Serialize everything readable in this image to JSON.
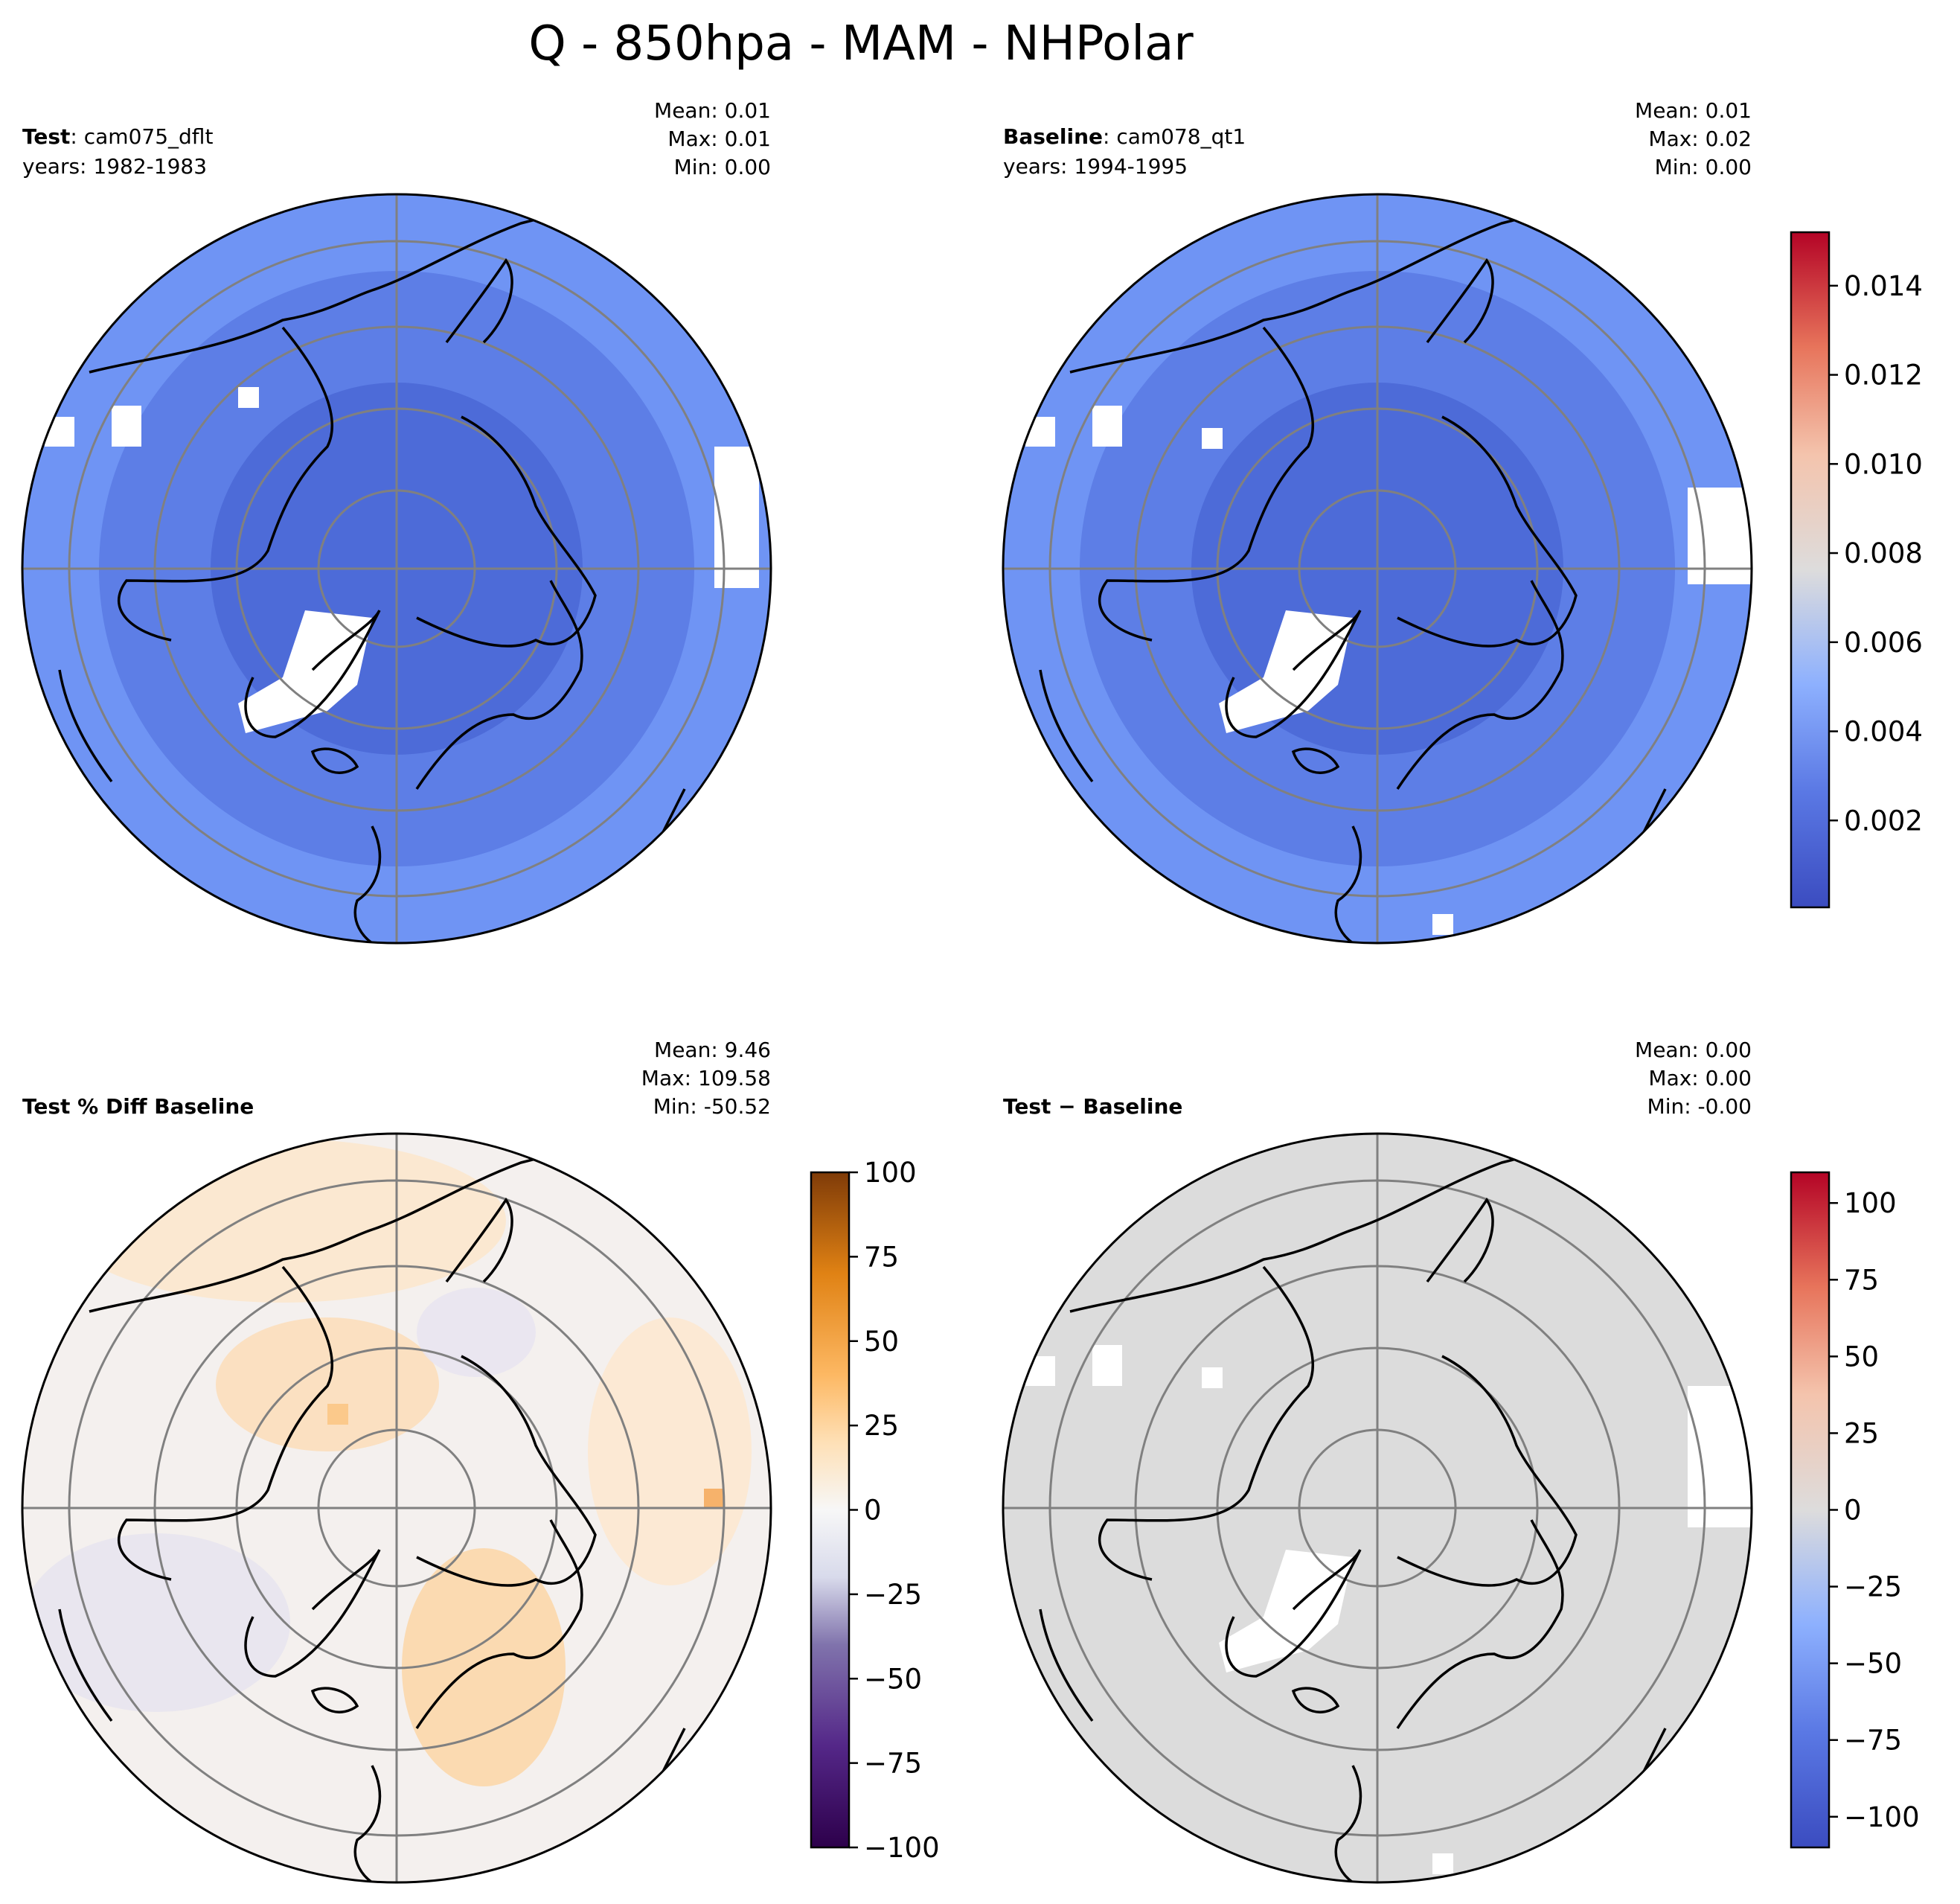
{
  "title": "Q - 850hpa - MAM - NHPolar",
  "panels": [
    {
      "id": "test",
      "label_bold": "Test",
      "label_rest": ": cam075_dflt",
      "years": "years: 1982-1983",
      "stats": [
        "Mean:  0.01",
        "Max:  0.01",
        "Min:  0.00"
      ],
      "fill": "#4a6fd8"
    },
    {
      "id": "baseline",
      "label_bold": "Baseline",
      "label_rest": ": cam078_qt1",
      "years": "years: 1994-1995",
      "stats": [
        "Mean:  0.01",
        "Max:  0.02",
        "Min:  0.00"
      ],
      "fill": "#4a6fd8"
    },
    {
      "id": "pctdiff",
      "label_bold": "Test % Diff Baseline",
      "label_rest": "",
      "years": "",
      "stats": [
        "Mean:  9.46",
        "Max: 109.58",
        "Min: -50.52"
      ],
      "fill": "#f3efee"
    },
    {
      "id": "diff",
      "label_bold": "Test − Baseline",
      "label_rest": "",
      "years": "",
      "stats": [
        "Mean:  0.00",
        "Max:  0.00",
        "Min: -0.00"
      ],
      "fill": "#dcdcdc"
    }
  ],
  "colorbars": [
    {
      "id": "top-colorbar",
      "colormap": "coolwarm",
      "range": [
        5e-05,
        0.0152
      ],
      "ticks": [
        "0.002",
        "0.004",
        "0.006",
        "0.008",
        "0.010",
        "0.012",
        "0.014"
      ],
      "tick_values": [
        0.002,
        0.004,
        0.006,
        0.008,
        0.01,
        0.012,
        0.014
      ],
      "colors": [
        "#3b4cc0",
        "#7b9ff9",
        "#c0d4f5",
        "#dddddd",
        "#f2cbb7",
        "#ee8468",
        "#b40426"
      ]
    },
    {
      "id": "pctdiff-colorbar",
      "colormap": "PuOr_r",
      "range": [
        -100,
        100
      ],
      "ticks": [
        "100",
        "75",
        "50",
        "25",
        "0",
        "−25",
        "−50",
        "−75",
        "−100"
      ],
      "tick_values": [
        100,
        75,
        50,
        25,
        0,
        -25,
        -50,
        -75,
        -100
      ],
      "colors": [
        "#7f3b08",
        "#e08214",
        "#fdb863",
        "#fee0b6",
        "#f7f7f7",
        "#d8daeb",
        "#b2abd2",
        "#8073ac",
        "#2d004b"
      ]
    },
    {
      "id": "diff-colorbar",
      "colormap": "coolwarm",
      "range": [
        -110,
        110
      ],
      "ticks": [
        "100",
        "75",
        "50",
        "25",
        "0",
        "−25",
        "−50",
        "−75",
        "−100"
      ],
      "tick_values": [
        100,
        75,
        50,
        25,
        0,
        -25,
        -50,
        -75,
        -100
      ],
      "colors": [
        "#b40426",
        "#ee8468",
        "#f2cbb7",
        "#dddddd",
        "#c0d4f5",
        "#7b9ff9",
        "#3b4cc0"
      ]
    }
  ]
}
